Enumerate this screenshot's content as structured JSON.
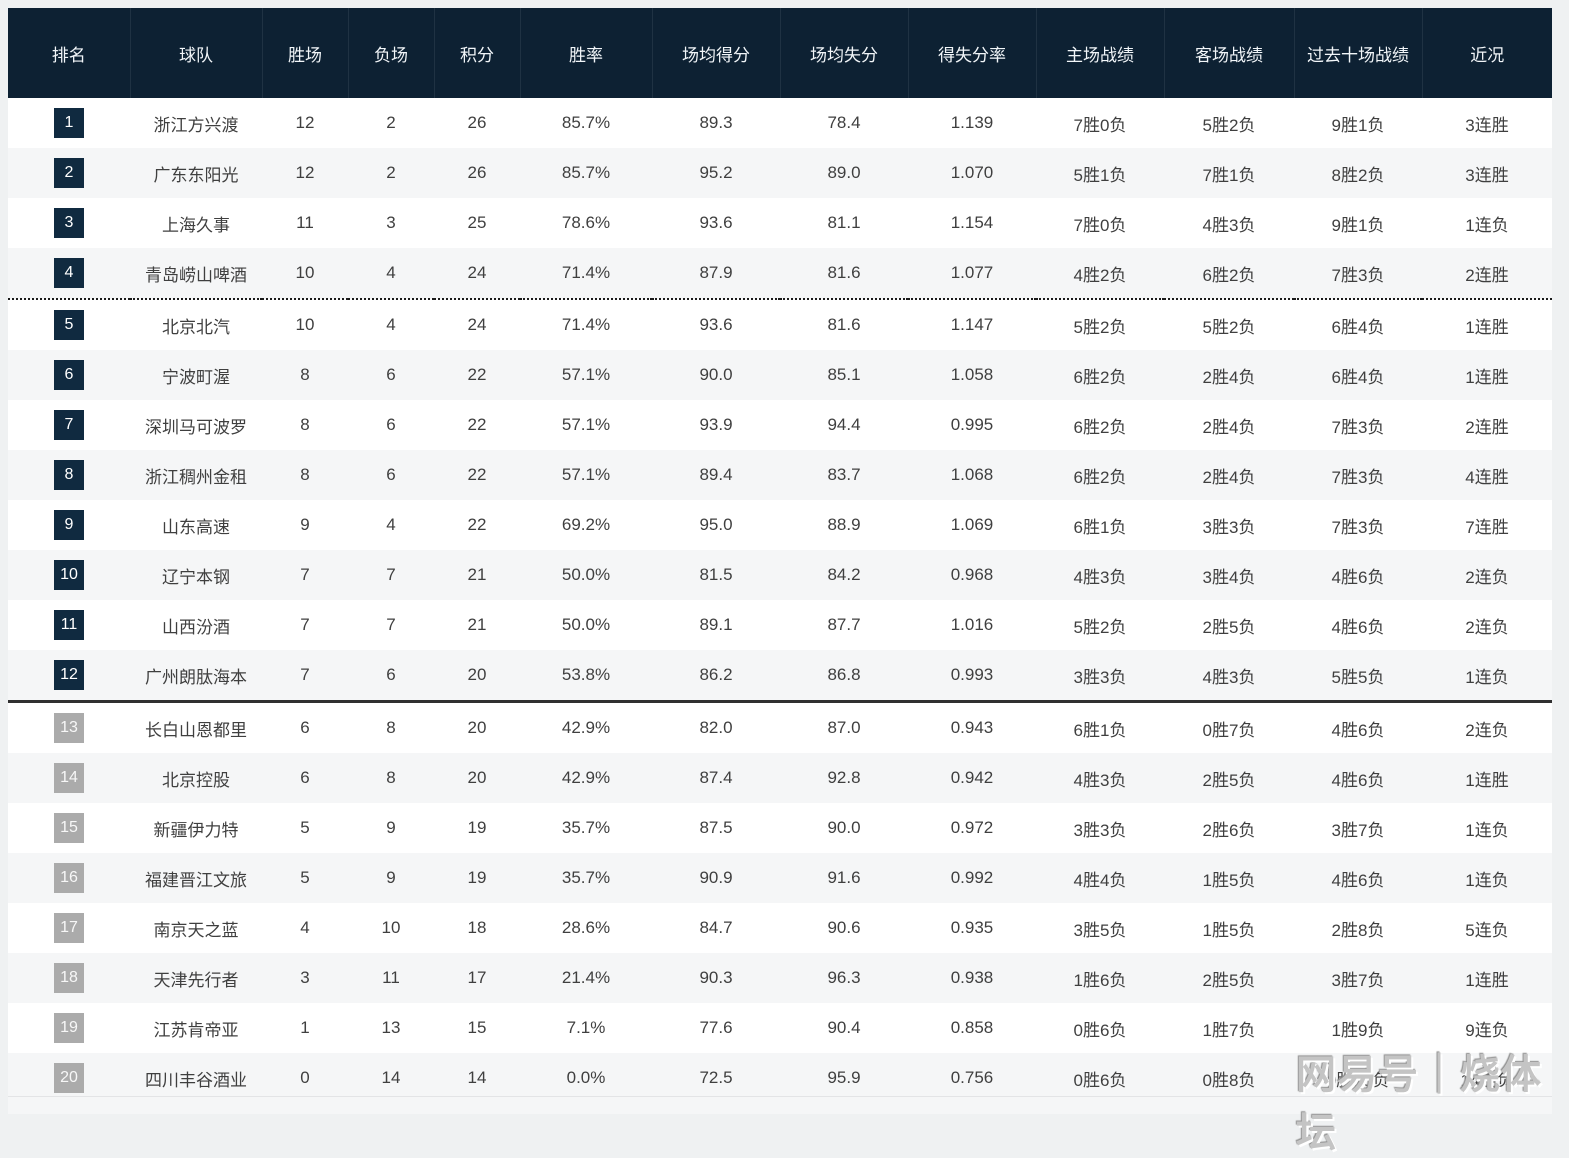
{
  "watermark": {
    "text": "网易号｜烧体坛"
  },
  "colors": {
    "header_bg": "#0d2133",
    "rank_badge_dark": "#102a40",
    "rank_badge_gray": "#ababab",
    "row_alt_bg": "#f5f6f7",
    "separator_dotted": "#1a1a1a",
    "separator_solid": "#303030"
  },
  "chart_data": {
    "type": "table",
    "columns": [
      "排名",
      "球队",
      "胜场",
      "负场",
      "积分",
      "胜率",
      "场均得分",
      "场均失分",
      "得失分率",
      "主场战绩",
      "客场战绩",
      "过去十场战绩",
      "近况"
    ],
    "field_names": [
      "rank",
      "team",
      "wins",
      "losses",
      "points",
      "win_rate",
      "points_for_avg",
      "points_against_avg",
      "score_ratio",
      "home_record",
      "away_record",
      "last_ten",
      "streak"
    ],
    "playoff_line_after_rank": 4,
    "division_line_after_rank": 12,
    "rows": [
      [
        "1",
        "浙江方兴渡",
        "12",
        "2",
        "26",
        "85.7%",
        "89.3",
        "78.4",
        "1.139",
        "7胜0负",
        "5胜2负",
        "9胜1负",
        "3连胜"
      ],
      [
        "2",
        "广东东阳光",
        "12",
        "2",
        "26",
        "85.7%",
        "95.2",
        "89.0",
        "1.070",
        "5胜1负",
        "7胜1负",
        "8胜2负",
        "3连胜"
      ],
      [
        "3",
        "上海久事",
        "11",
        "3",
        "25",
        "78.6%",
        "93.6",
        "81.1",
        "1.154",
        "7胜0负",
        "4胜3负",
        "9胜1负",
        "1连负"
      ],
      [
        "4",
        "青岛崂山啤酒",
        "10",
        "4",
        "24",
        "71.4%",
        "87.9",
        "81.6",
        "1.077",
        "4胜2负",
        "6胜2负",
        "7胜3负",
        "2连胜"
      ],
      [
        "5",
        "北京北汽",
        "10",
        "4",
        "24",
        "71.4%",
        "93.6",
        "81.6",
        "1.147",
        "5胜2负",
        "5胜2负",
        "6胜4负",
        "1连胜"
      ],
      [
        "6",
        "宁波町渥",
        "8",
        "6",
        "22",
        "57.1%",
        "90.0",
        "85.1",
        "1.058",
        "6胜2负",
        "2胜4负",
        "6胜4负",
        "1连胜"
      ],
      [
        "7",
        "深圳马可波罗",
        "8",
        "6",
        "22",
        "57.1%",
        "93.9",
        "94.4",
        "0.995",
        "6胜2负",
        "2胜4负",
        "7胜3负",
        "2连胜"
      ],
      [
        "8",
        "浙江稠州金租",
        "8",
        "6",
        "22",
        "57.1%",
        "89.4",
        "83.7",
        "1.068",
        "6胜2负",
        "2胜4负",
        "7胜3负",
        "4连胜"
      ],
      [
        "9",
        "山东高速",
        "9",
        "4",
        "22",
        "69.2%",
        "95.0",
        "88.9",
        "1.069",
        "6胜1负",
        "3胜3负",
        "7胜3负",
        "7连胜"
      ],
      [
        "10",
        "辽宁本钢",
        "7",
        "7",
        "21",
        "50.0%",
        "81.5",
        "84.2",
        "0.968",
        "4胜3负",
        "3胜4负",
        "4胜6负",
        "2连负"
      ],
      [
        "11",
        "山西汾酒",
        "7",
        "7",
        "21",
        "50.0%",
        "89.1",
        "87.7",
        "1.016",
        "5胜2负",
        "2胜5负",
        "4胜6负",
        "2连负"
      ],
      [
        "12",
        "广州朗肽海本",
        "7",
        "6",
        "20",
        "53.8%",
        "86.2",
        "86.8",
        "0.993",
        "3胜3负",
        "4胜3负",
        "5胜5负",
        "1连负"
      ],
      [
        "13",
        "长白山恩都里",
        "6",
        "8",
        "20",
        "42.9%",
        "82.0",
        "87.0",
        "0.943",
        "6胜1负",
        "0胜7负",
        "4胜6负",
        "2连负"
      ],
      [
        "14",
        "北京控股",
        "6",
        "8",
        "20",
        "42.9%",
        "87.4",
        "92.8",
        "0.942",
        "4胜3负",
        "2胜5负",
        "4胜6负",
        "1连胜"
      ],
      [
        "15",
        "新疆伊力特",
        "5",
        "9",
        "19",
        "35.7%",
        "87.5",
        "90.0",
        "0.972",
        "3胜3负",
        "2胜6负",
        "3胜7负",
        "1连负"
      ],
      [
        "16",
        "福建晋江文旅",
        "5",
        "9",
        "19",
        "35.7%",
        "90.9",
        "91.6",
        "0.992",
        "4胜4负",
        "1胜5负",
        "4胜6负",
        "1连负"
      ],
      [
        "17",
        "南京天之蓝",
        "4",
        "10",
        "18",
        "28.6%",
        "84.7",
        "90.6",
        "0.935",
        "3胜5负",
        "1胜5负",
        "2胜8负",
        "5连负"
      ],
      [
        "18",
        "天津先行者",
        "3",
        "11",
        "17",
        "21.4%",
        "90.3",
        "96.3",
        "0.938",
        "1胜6负",
        "2胜5负",
        "3胜7负",
        "1连胜"
      ],
      [
        "19",
        "江苏肯帝亚",
        "1",
        "13",
        "15",
        "7.1%",
        "77.6",
        "90.4",
        "0.858",
        "0胜6负",
        "1胜7负",
        "1胜9负",
        "9连负"
      ],
      [
        "20",
        "四川丰谷酒业",
        "0",
        "14",
        "14",
        "0.0%",
        "72.5",
        "95.9",
        "0.756",
        "0胜6负",
        "0胜8负",
        "0胜10负",
        "14连负"
      ]
    ]
  }
}
